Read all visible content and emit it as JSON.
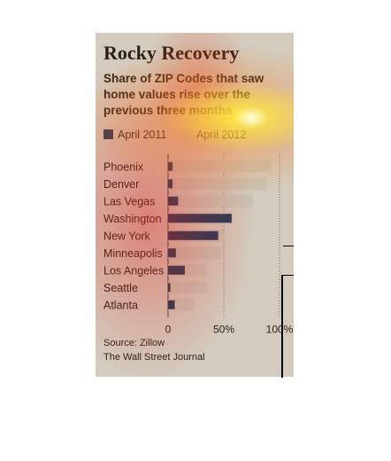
{
  "chart_data": {
    "type": "bar",
    "title": "Rocky Recovery",
    "subtitle": "Share of ZIP Codes that saw home values rise over the previous three months",
    "categories": [
      "Phoenix",
      "Denver",
      "Las Vegas",
      "Washington",
      "New York",
      "Minneapolis",
      "Los Angeles",
      "Seattle",
      "Atlanta"
    ],
    "series": [
      {
        "name": "April 2011",
        "color": "#1f3a5a",
        "values": [
          4,
          4,
          9,
          57,
          45,
          7,
          15,
          2,
          6
        ]
      },
      {
        "name": "April 2012",
        "color": "#c9c3b3",
        "values": [
          92,
          88,
          76,
          58,
          51,
          48,
          34,
          35,
          24
        ]
      }
    ],
    "xlim": [
      0,
      100
    ],
    "ticks": [
      "0",
      "50%",
      "100%"
    ],
    "grid": "dotted vertical at 50% and 100%",
    "legend": "top",
    "source": "Source: Zillow",
    "publisher": "The Wall Street Journal"
  }
}
